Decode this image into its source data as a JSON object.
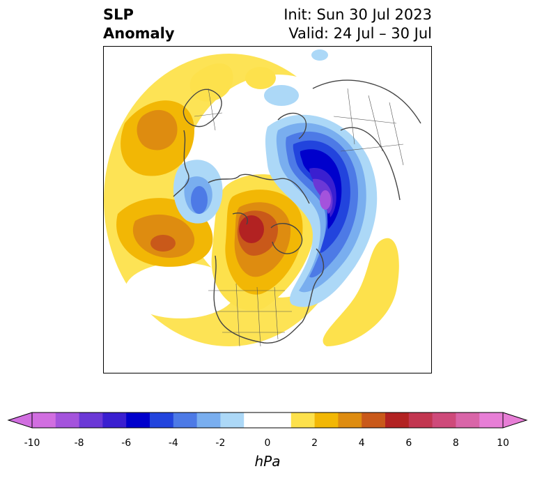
{
  "header": {
    "left_line1": "SLP",
    "left_line2": "Anomaly",
    "right_line1": "Init: Sun 30 Jul 2023",
    "right_line2": "Valid: 24 Jul – 30 Jul"
  },
  "colorbar": {
    "unit": "hPa",
    "ticks": [
      "-10",
      "-8",
      "-6",
      "-4",
      "-2",
      "0",
      "2",
      "4",
      "6",
      "8",
      "10"
    ],
    "bins": [
      {
        "from": -10,
        "to": -9,
        "color": "#d16ee0"
      },
      {
        "from": -9,
        "to": -8,
        "color": "#a453dc"
      },
      {
        "from": -8,
        "to": -7,
        "color": "#6b38d6"
      },
      {
        "from": -7,
        "to": -6,
        "color": "#3a1fd0"
      },
      {
        "from": -6,
        "to": -5,
        "color": "#0000cc"
      },
      {
        "from": -5,
        "to": -4,
        "color": "#2244dd"
      },
      {
        "from": -4,
        "to": -3,
        "color": "#4d7ae6"
      },
      {
        "from": -3,
        "to": -2,
        "color": "#79aeef"
      },
      {
        "from": -2,
        "to": -1,
        "color": "#acd8f7"
      },
      {
        "from": -1,
        "to": 1,
        "color": "#ffffff"
      },
      {
        "from": 1,
        "to": 2,
        "color": "#fde14c"
      },
      {
        "from": 2,
        "to": 3,
        "color": "#f2b705"
      },
      {
        "from": 3,
        "to": 4,
        "color": "#de8c10"
      },
      {
        "from": 4,
        "to": 5,
        "color": "#c9591a"
      },
      {
        "from": 5,
        "to": 6,
        "color": "#b22222"
      },
      {
        "from": 6,
        "to": 7,
        "color": "#c23650"
      },
      {
        "from": 7,
        "to": 8,
        "color": "#ce4a7a"
      },
      {
        "from": 8,
        "to": 9,
        "color": "#d965a8"
      },
      {
        "from": 9,
        "to": 10,
        "color": "#e77ed6"
      }
    ],
    "extend_low_color": "#d16ee0",
    "extend_high_color": "#e77ed6"
  }
}
